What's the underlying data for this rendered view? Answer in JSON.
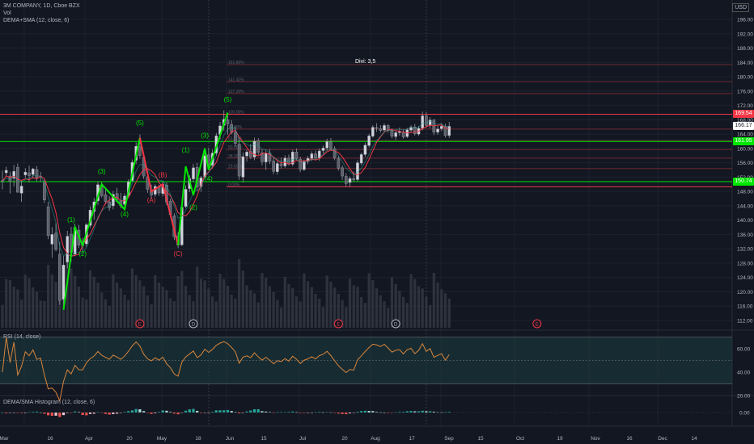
{
  "chart_data": {
    "type": "candlestick",
    "legend": {
      "symbol_line": "3M COMPANY, 1D, Cboe BZX",
      "volume_label": "Vol",
      "indicator_label": "DEMA+SMA (12, close, 6)",
      "rsi_label": "RSI (14, close)",
      "histogram_label": "DEMA/SMA Histogram (12, close, 6)"
    },
    "currency": "USD",
    "divi_label": "Divi: 3,5",
    "price_axis": {
      "range": [
        110,
        200
      ],
      "ticks": [
        "196.00",
        "192.00",
        "188.00",
        "184.00",
        "180.00",
        "176.00",
        "172.00",
        "168.00",
        "164.00",
        "160.00",
        "156.00",
        "152.00",
        "148.00",
        "144.00",
        "140.00",
        "136.00",
        "132.00",
        "128.00",
        "124.00",
        "120.00",
        "116.00",
        "112.00"
      ]
    },
    "rsi_axis": {
      "ticks": [
        "60.00",
        "40.00",
        "20.00"
      ],
      "upper_band": 70,
      "lower_band": 30
    },
    "histogram_axis": {
      "ticks": [
        "0.00"
      ]
    },
    "x_axis": {
      "labels": [
        "Mar",
        "16",
        "Apr",
        "20",
        "May",
        "18",
        "Jun",
        "15",
        "Jul",
        "20",
        "Aug",
        "17",
        "Sep",
        "15",
        "Oct",
        "19",
        "Nov",
        "16",
        "Dec",
        "14"
      ]
    },
    "price_tags": [
      {
        "value": "169.54",
        "color": "#f23645"
      },
      {
        "value": "166.17",
        "color": "#ffffff"
      },
      {
        "value": "161.95",
        "color": "#00e600"
      },
      {
        "value": "150.74",
        "color": "#00e600"
      }
    ],
    "fib_levels": [
      {
        "label": "161.80%",
        "price": 183.4
      },
      {
        "label": "141.40%",
        "price": 178.6
      },
      {
        "label": "127.20%",
        "price": 175.3
      },
      {
        "label": "100.00%",
        "price": 169.54
      },
      {
        "label": "78.60%",
        "price": 165.4
      },
      {
        "label": "61.80%",
        "price": 162.2
      },
      {
        "label": "50.00%",
        "price": 159.7
      },
      {
        "label": "38.20%",
        "price": 157.3
      },
      {
        "label": "23.60%",
        "price": 154.4
      },
      {
        "label": "0.00%",
        "price": 149.3
      }
    ],
    "horizontal_lines": [
      {
        "price": 161.95,
        "color": "#00e600"
      },
      {
        "price": 150.74,
        "color": "#00e600"
      }
    ],
    "wave_labels": [
      {
        "text": "(1)",
        "date_index": 18,
        "price": 139.5,
        "color": "#00e600"
      },
      {
        "text": "(2)",
        "date_index": 21,
        "price": 130,
        "color": "#00e600"
      },
      {
        "text": "(3)",
        "date_index": 26,
        "price": 153,
        "color": "#00e600"
      },
      {
        "text": "(4)",
        "date_index": 32,
        "price": 141,
        "color": "#00e600"
      },
      {
        "text": "(5)",
        "date_index": 36,
        "price": 166.5,
        "color": "#00e600"
      },
      {
        "text": "(A)",
        "date_index": 39,
        "price": 145,
        "color": "#f23645"
      },
      {
        "text": "(B)",
        "date_index": 42,
        "price": 152,
        "color": "#f23645"
      },
      {
        "text": "(C)",
        "date_index": 46,
        "price": 130,
        "color": "#f23645"
      },
      {
        "text": "(1)",
        "date_index": 48,
        "price": 159,
        "color": "#00e600"
      },
      {
        "text": "(2)",
        "date_index": 50,
        "price": 143,
        "color": "#00e600"
      },
      {
        "text": "(3)",
        "date_index": 53,
        "price": 163,
        "color": "#00e600"
      },
      {
        "text": "(4)",
        "date_index": 54,
        "price": 151,
        "color": "#00e600"
      },
      {
        "text": "(5)",
        "date_index": 59,
        "price": 173,
        "color": "#00e600"
      }
    ],
    "wave_paths": [
      {
        "color": "#00e600",
        "points": [
          [
            16,
            115
          ],
          [
            19,
            138
          ],
          [
            21,
            133
          ],
          [
            26,
            150
          ],
          [
            32,
            143
          ],
          [
            36,
            163
          ]
        ]
      },
      {
        "color": "#f23645",
        "points": [
          [
            36,
            163
          ],
          [
            39,
            148
          ],
          [
            42,
            150
          ],
          [
            46,
            133
          ]
        ]
      },
      {
        "color": "#00e600",
        "points": [
          [
            46,
            133
          ],
          [
            48,
            155
          ],
          [
            50,
            147
          ],
          [
            53,
            160
          ],
          [
            54,
            154
          ],
          [
            59,
            170
          ]
        ]
      }
    ],
    "event_markers": [
      {
        "text": "E",
        "date_index": 36,
        "color": "#f23645"
      },
      {
        "text": "D",
        "date_index": 50,
        "color": "#b2b5be"
      },
      {
        "text": "E",
        "date_index": 88,
        "color": "#f23645"
      },
      {
        "text": "D",
        "date_index": 103,
        "color": "#b2b5be"
      },
      {
        "text": "E",
        "date_index": 140,
        "color": "#f23645"
      }
    ],
    "candles": [
      {
        "o": 151.0,
        "h": 153.8,
        "l": 148.6,
        "c": 150.8
      },
      {
        "o": 153.2,
        "h": 154.9,
        "l": 152.3,
        "c": 153.9
      },
      {
        "o": 152.3,
        "h": 153.5,
        "l": 147.4,
        "c": 150.8
      },
      {
        "o": 151.7,
        "h": 155.4,
        "l": 149.4,
        "c": 153.6
      },
      {
        "o": 154.7,
        "h": 155.8,
        "l": 147.6,
        "c": 147.8
      },
      {
        "o": 147.5,
        "h": 151.0,
        "l": 145.1,
        "c": 149.5
      },
      {
        "o": 152.6,
        "h": 154.5,
        "l": 151.7,
        "c": 153.4
      },
      {
        "o": 153.2,
        "h": 155.2,
        "l": 150.5,
        "c": 152.4
      },
      {
        "o": 152.7,
        "h": 154.6,
        "l": 151.6,
        "c": 154.3
      },
      {
        "o": 154.1,
        "h": 155.1,
        "l": 150.7,
        "c": 151.7
      },
      {
        "o": 152.2,
        "h": 153.4,
        "l": 150.6,
        "c": 152.1
      },
      {
        "o": 150.4,
        "h": 151.3,
        "l": 144.8,
        "c": 145.6
      },
      {
        "o": 143.7,
        "h": 145.1,
        "l": 134.7,
        "c": 135.7
      },
      {
        "o": 133.3,
        "h": 138.0,
        "l": 129.5,
        "c": 136.0
      },
      {
        "o": 136.4,
        "h": 139.2,
        "l": 131.3,
        "c": 131.8
      },
      {
        "o": 130.5,
        "h": 133.9,
        "l": 116.4,
        "c": 117.6
      },
      {
        "o": 117.9,
        "h": 130.0,
        "l": 115.0,
        "c": 127.5
      },
      {
        "o": 128.3,
        "h": 137.0,
        "l": 126.6,
        "c": 135.5
      },
      {
        "o": 136.1,
        "h": 138.1,
        "l": 128.4,
        "c": 131.0
      },
      {
        "o": 130.5,
        "h": 139.0,
        "l": 129.9,
        "c": 137.9
      },
      {
        "o": 137.2,
        "h": 138.7,
        "l": 132.2,
        "c": 133.0
      },
      {
        "o": 133.2,
        "h": 135.1,
        "l": 131.4,
        "c": 132.9
      },
      {
        "o": 133.4,
        "h": 139.2,
        "l": 132.6,
        "c": 138.7
      },
      {
        "o": 138.5,
        "h": 143.8,
        "l": 137.8,
        "c": 142.8
      },
      {
        "o": 142.4,
        "h": 146.2,
        "l": 140.1,
        "c": 145.1
      },
      {
        "o": 145.4,
        "h": 150.7,
        "l": 144.3,
        "c": 149.9
      },
      {
        "o": 149.5,
        "h": 150.6,
        "l": 146.3,
        "c": 146.8
      },
      {
        "o": 147.1,
        "h": 148.5,
        "l": 144.4,
        "c": 145.2
      },
      {
        "o": 145.1,
        "h": 146.7,
        "l": 142.6,
        "c": 143.5
      },
      {
        "o": 144.0,
        "h": 148.1,
        "l": 143.0,
        "c": 147.2
      },
      {
        "o": 147.4,
        "h": 149.0,
        "l": 144.9,
        "c": 145.7
      },
      {
        "o": 145.4,
        "h": 147.6,
        "l": 143.3,
        "c": 144.0
      },
      {
        "o": 144.4,
        "h": 147.5,
        "l": 143.1,
        "c": 146.7
      },
      {
        "o": 146.9,
        "h": 151.4,
        "l": 146.2,
        "c": 150.7
      },
      {
        "o": 151.0,
        "h": 156.9,
        "l": 150.6,
        "c": 156.1
      },
      {
        "o": 156.7,
        "h": 161.7,
        "l": 155.6,
        "c": 160.6
      },
      {
        "o": 160.5,
        "h": 163.9,
        "l": 157.1,
        "c": 158.0
      },
      {
        "o": 157.6,
        "h": 158.8,
        "l": 151.5,
        "c": 152.3
      },
      {
        "o": 152.1,
        "h": 153.1,
        "l": 147.6,
        "c": 148.6
      },
      {
        "o": 148.5,
        "h": 149.9,
        "l": 145.9,
        "c": 147.0
      },
      {
        "o": 147.2,
        "h": 150.0,
        "l": 146.5,
        "c": 149.4
      },
      {
        "o": 149.2,
        "h": 149.8,
        "l": 146.8,
        "c": 147.6
      },
      {
        "o": 147.4,
        "h": 150.9,
        "l": 146.6,
        "c": 150.0
      },
      {
        "o": 149.8,
        "h": 150.5,
        "l": 144.2,
        "c": 145.0
      },
      {
        "o": 145.3,
        "h": 146.0,
        "l": 140.7,
        "c": 141.5
      },
      {
        "o": 141.2,
        "h": 141.9,
        "l": 134.5,
        "c": 135.4
      },
      {
        "o": 135.6,
        "h": 136.7,
        "l": 132.2,
        "c": 133.0
      },
      {
        "o": 133.1,
        "h": 144.4,
        "l": 132.7,
        "c": 143.6
      },
      {
        "o": 143.8,
        "h": 149.7,
        "l": 143.3,
        "c": 148.6
      },
      {
        "o": 148.8,
        "h": 152.5,
        "l": 147.8,
        "c": 151.6
      },
      {
        "o": 151.5,
        "h": 155.7,
        "l": 150.8,
        "c": 154.6
      },
      {
        "o": 154.7,
        "h": 156.0,
        "l": 148.1,
        "c": 149.2
      },
      {
        "o": 149.4,
        "h": 152.3,
        "l": 147.9,
        "c": 151.8
      },
      {
        "o": 152.0,
        "h": 158.9,
        "l": 151.6,
        "c": 158.0
      },
      {
        "o": 158.2,
        "h": 160.2,
        "l": 154.1,
        "c": 155.5
      },
      {
        "o": 155.3,
        "h": 159.8,
        "l": 154.4,
        "c": 158.7
      },
      {
        "o": 158.7,
        "h": 164.3,
        "l": 158.0,
        "c": 163.5
      },
      {
        "o": 163.9,
        "h": 167.4,
        "l": 162.5,
        "c": 166.3
      },
      {
        "o": 166.4,
        "h": 170.6,
        "l": 164.9,
        "c": 168.1
      },
      {
        "o": 167.9,
        "h": 169.3,
        "l": 163.8,
        "c": 166.8
      },
      {
        "o": 166.7,
        "h": 167.9,
        "l": 163.9,
        "c": 164.4
      },
      {
        "o": 164.5,
        "h": 166.2,
        "l": 160.5,
        "c": 161.4
      },
      {
        "o": 161.2,
        "h": 162.8,
        "l": 151.2,
        "c": 152.3
      },
      {
        "o": 152.0,
        "h": 158.9,
        "l": 150.5,
        "c": 157.7
      },
      {
        "o": 157.9,
        "h": 159.6,
        "l": 156.4,
        "c": 159.0
      },
      {
        "o": 159.2,
        "h": 161.3,
        "l": 157.0,
        "c": 157.6
      },
      {
        "o": 157.6,
        "h": 163.0,
        "l": 156.7,
        "c": 162.0
      },
      {
        "o": 162.1,
        "h": 162.9,
        "l": 158.2,
        "c": 158.9
      },
      {
        "o": 158.8,
        "h": 159.7,
        "l": 155.3,
        "c": 156.3
      },
      {
        "o": 156.2,
        "h": 159.4,
        "l": 154.0,
        "c": 158.6
      },
      {
        "o": 158.7,
        "h": 159.8,
        "l": 155.6,
        "c": 156.4
      },
      {
        "o": 156.5,
        "h": 157.3,
        "l": 152.8,
        "c": 153.6
      },
      {
        "o": 153.5,
        "h": 156.5,
        "l": 152.7,
        "c": 155.8
      },
      {
        "o": 155.7,
        "h": 157.4,
        "l": 154.4,
        "c": 155.2
      },
      {
        "o": 155.1,
        "h": 158.1,
        "l": 154.6,
        "c": 157.3
      },
      {
        "o": 157.3,
        "h": 158.3,
        "l": 155.2,
        "c": 155.6
      },
      {
        "o": 155.6,
        "h": 159.6,
        "l": 155.0,
        "c": 159.0
      },
      {
        "o": 159.0,
        "h": 160.0,
        "l": 156.6,
        "c": 157.1
      },
      {
        "o": 157.0,
        "h": 157.7,
        "l": 153.4,
        "c": 154.2
      },
      {
        "o": 154.1,
        "h": 156.9,
        "l": 153.7,
        "c": 156.3
      },
      {
        "o": 156.4,
        "h": 157.9,
        "l": 155.6,
        "c": 157.2
      },
      {
        "o": 157.2,
        "h": 159.2,
        "l": 156.5,
        "c": 158.5
      },
      {
        "o": 158.5,
        "h": 159.4,
        "l": 156.9,
        "c": 157.3
      },
      {
        "o": 157.3,
        "h": 160.0,
        "l": 156.5,
        "c": 159.3
      },
      {
        "o": 159.4,
        "h": 160.8,
        "l": 158.6,
        "c": 160.1
      },
      {
        "o": 160.1,
        "h": 162.7,
        "l": 159.4,
        "c": 161.9
      },
      {
        "o": 161.8,
        "h": 162.9,
        "l": 159.4,
        "c": 159.9
      },
      {
        "o": 159.9,
        "h": 160.6,
        "l": 156.7,
        "c": 157.3
      },
      {
        "o": 157.1,
        "h": 157.8,
        "l": 153.8,
        "c": 154.5
      },
      {
        "o": 154.6,
        "h": 155.3,
        "l": 151.2,
        "c": 152.3
      },
      {
        "o": 152.2,
        "h": 153.1,
        "l": 149.4,
        "c": 150.2
      },
      {
        "o": 150.5,
        "h": 152.2,
        "l": 149.3,
        "c": 151.6
      },
      {
        "o": 151.6,
        "h": 153.5,
        "l": 150.7,
        "c": 151.2
      },
      {
        "o": 151.3,
        "h": 156.7,
        "l": 150.8,
        "c": 156.0
      },
      {
        "o": 155.9,
        "h": 158.8,
        "l": 155.3,
        "c": 158.3
      },
      {
        "o": 158.3,
        "h": 161.6,
        "l": 157.7,
        "c": 160.9
      },
      {
        "o": 160.8,
        "h": 164.1,
        "l": 160.3,
        "c": 163.5
      },
      {
        "o": 163.4,
        "h": 166.5,
        "l": 163.0,
        "c": 165.9
      },
      {
        "o": 165.8,
        "h": 167.0,
        "l": 164.6,
        "c": 165.6
      },
      {
        "o": 165.5,
        "h": 166.5,
        "l": 164.4,
        "c": 165.0
      },
      {
        "o": 165.1,
        "h": 167.0,
        "l": 164.6,
        "c": 166.4
      },
      {
        "o": 166.4,
        "h": 166.8,
        "l": 164.4,
        "c": 165.0
      },
      {
        "o": 165.0,
        "h": 165.6,
        "l": 162.8,
        "c": 163.4
      },
      {
        "o": 163.3,
        "h": 164.9,
        "l": 162.4,
        "c": 164.4
      },
      {
        "o": 164.4,
        "h": 165.8,
        "l": 163.5,
        "c": 164.7
      },
      {
        "o": 164.6,
        "h": 165.3,
        "l": 162.7,
        "c": 163.2
      },
      {
        "o": 163.3,
        "h": 165.7,
        "l": 162.9,
        "c": 165.2
      },
      {
        "o": 165.1,
        "h": 166.5,
        "l": 164.3,
        "c": 165.9
      },
      {
        "o": 166.0,
        "h": 166.8,
        "l": 163.6,
        "c": 164.1
      },
      {
        "o": 164.0,
        "h": 166.3,
        "l": 163.5,
        "c": 165.6
      },
      {
        "o": 165.6,
        "h": 170.3,
        "l": 165.0,
        "c": 169.1
      },
      {
        "o": 169.1,
        "h": 170.2,
        "l": 165.8,
        "c": 166.4
      },
      {
        "o": 166.4,
        "h": 168.7,
        "l": 165.6,
        "c": 167.9
      },
      {
        "o": 167.9,
        "h": 168.2,
        "l": 163.7,
        "c": 164.5
      },
      {
        "o": 164.5,
        "h": 166.3,
        "l": 163.8,
        "c": 165.4
      },
      {
        "o": 165.5,
        "h": 167.1,
        "l": 164.8,
        "c": 166.2
      },
      {
        "o": 166.1,
        "h": 166.9,
        "l": 163.0,
        "c": 163.6
      },
      {
        "o": 163.6,
        "h": 167.4,
        "l": 162.9,
        "c": 166.17
      }
    ]
  }
}
